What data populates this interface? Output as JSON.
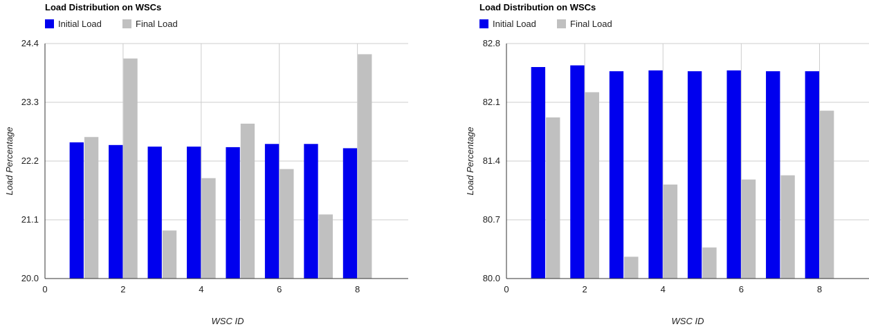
{
  "chart_data": [
    {
      "type": "bar",
      "title": "Load Distribution on WSCs",
      "xlabel": "WSC ID",
      "ylabel": "Load Percentage",
      "x": [
        1,
        2,
        3,
        4,
        5,
        6,
        7,
        8
      ],
      "xticks": [
        "0",
        "2",
        "4",
        "6",
        "8"
      ],
      "xlim": [
        0,
        9.3
      ],
      "ylim": [
        20.0,
        24.4
      ],
      "yticks": [
        "20.0",
        "21.1",
        "22.2",
        "23.3",
        "24.4"
      ],
      "grid": true,
      "legend_position": "top-left",
      "series": [
        {
          "name": "Initial Load",
          "color": "#0000ee",
          "values": [
            22.55,
            22.5,
            22.47,
            22.47,
            22.46,
            22.52,
            22.52,
            22.44
          ]
        },
        {
          "name": "Final Load",
          "color": "#c0c0c0",
          "values": [
            22.65,
            24.12,
            20.9,
            21.88,
            22.9,
            22.05,
            21.2,
            24.2
          ]
        }
      ]
    },
    {
      "type": "bar",
      "title": "Load Distribution on WSCs",
      "xlabel": "WSC ID",
      "ylabel": "Load Percentage",
      "x": [
        1,
        2,
        3,
        4,
        5,
        6,
        7,
        8
      ],
      "xticks": [
        "0",
        "2",
        "4",
        "6",
        "8"
      ],
      "xlim": [
        0,
        9.3
      ],
      "ylim": [
        80.0,
        82.8
      ],
      "yticks": [
        "80.0",
        "80.7",
        "81.4",
        "82.1",
        "82.8"
      ],
      "grid": true,
      "legend_position": "top-left",
      "series": [
        {
          "name": "Initial Load",
          "color": "#0000ee",
          "values": [
            82.52,
            82.54,
            82.47,
            82.48,
            82.47,
            82.48,
            82.47,
            82.47
          ]
        },
        {
          "name": "Final Load",
          "color": "#c0c0c0",
          "values": [
            81.92,
            82.22,
            80.26,
            81.12,
            80.37,
            81.18,
            81.23,
            82.0
          ]
        }
      ]
    }
  ]
}
